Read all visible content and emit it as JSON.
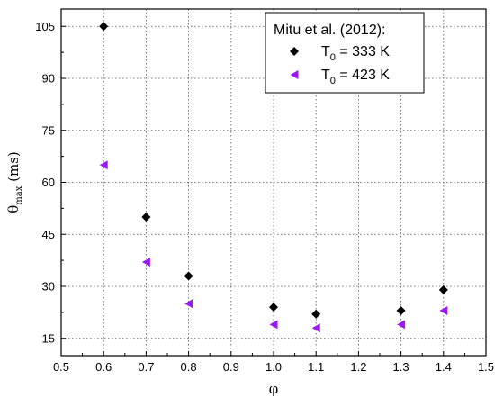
{
  "chart_data": {
    "type": "scatter",
    "title": "",
    "xlabel": "φ",
    "ylabel": "θ",
    "ylabel_sub": "max",
    "ylabel_unit": " (ms)",
    "xlim": [
      0.5,
      1.5
    ],
    "ylim": [
      10,
      110
    ],
    "x_ticks": [
      "0.5",
      "0.6",
      "0.7",
      "0.8",
      "0.9",
      "1.0",
      "1.1",
      "1.2",
      "1.3",
      "1.4",
      "1.5"
    ],
    "y_ticks": [
      "15",
      "30",
      "45",
      "60",
      "75",
      "90",
      "105"
    ],
    "grid": true,
    "legend_position": "top-right",
    "legend_title": "Mitu et al. (2012):",
    "series": [
      {
        "name": "T0 = 333 K",
        "label_main": "T",
        "label_sub": "0",
        "label_rest": " = 333 K",
        "marker": "diamond",
        "color": "#000000",
        "x": [
          0.6,
          0.7,
          0.8,
          1.0,
          1.1,
          1.3,
          1.4
        ],
        "y": [
          105,
          50,
          33,
          24,
          22,
          23,
          29
        ]
      },
      {
        "name": "T0 = 423 K",
        "label_main": "T",
        "label_sub": "0",
        "label_rest": " = 423 K",
        "marker": "left-triangle",
        "color": "#9b19f5",
        "x": [
          0.6,
          0.7,
          0.8,
          1.0,
          1.1,
          1.3,
          1.4
        ],
        "y": [
          65,
          37,
          25,
          19,
          18,
          19,
          23
        ]
      }
    ]
  }
}
